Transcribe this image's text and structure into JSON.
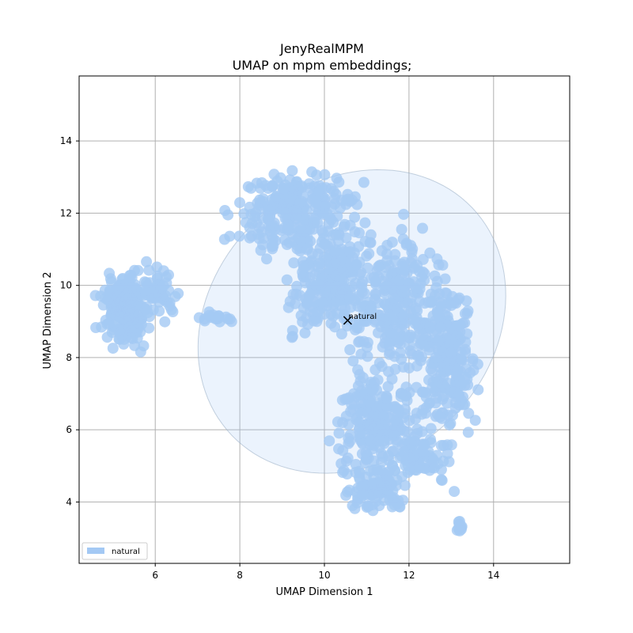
{
  "chart_data": {
    "type": "scatter",
    "title_line1": "JenyRealMPM",
    "title_line2": "UMAP on mpm embeddings;",
    "xlabel": "UMAP Dimension 1",
    "ylabel": "UMAP Dimension 2",
    "xlim": [
      4.2,
      15.8
    ],
    "ylim": [
      2.3,
      15.8
    ],
    "xticks": [
      6,
      8,
      10,
      12,
      14
    ],
    "yticks": [
      4,
      6,
      8,
      10,
      12,
      14
    ],
    "grid": true,
    "legend_position": "bottom-left",
    "series": [
      {
        "name": "natural",
        "color": "#a4c9f4",
        "centroid": [
          10.55,
          9.03
        ],
        "centroid_label": "natural",
        "ellipse": {
          "center": [
            10.65,
            9.0
          ],
          "semi_major": 6.9,
          "semi_minor": 5.5,
          "angle_deg": 65
        },
        "clusters": [
          {
            "center": [
              5.3,
              9.3
            ],
            "spread": [
              0.45,
              0.75
            ],
            "count": 180
          },
          {
            "center": [
              6.1,
              9.8
            ],
            "spread": [
              0.35,
              0.55
            ],
            "count": 50
          },
          {
            "center": [
              7.4,
              9.1
            ],
            "spread": [
              0.4,
              0.12
            ],
            "count": 18
          },
          {
            "center": [
              9.3,
              12.0
            ],
            "spread": [
              1.1,
              0.9
            ],
            "count": 260
          },
          {
            "center": [
              10.2,
              10.0
            ],
            "spread": [
              0.9,
              1.2
            ],
            "count": 220
          },
          {
            "center": [
              11.8,
              9.5
            ],
            "spread": [
              0.9,
              1.4
            ],
            "count": 260
          },
          {
            "center": [
              12.9,
              8.0
            ],
            "spread": [
              0.55,
              1.6
            ],
            "count": 200
          },
          {
            "center": [
              11.3,
              6.3
            ],
            "spread": [
              0.9,
              1.1
            ],
            "count": 220
          },
          {
            "center": [
              11.2,
              4.4
            ],
            "spread": [
              0.6,
              0.55
            ],
            "count": 90
          },
          {
            "center": [
              12.3,
              5.2
            ],
            "spread": [
              0.55,
              0.5
            ],
            "count": 60
          },
          {
            "center": [
              13.2,
              3.3
            ],
            "spread": [
              0.06,
              0.12
            ],
            "count": 10
          }
        ]
      }
    ]
  }
}
